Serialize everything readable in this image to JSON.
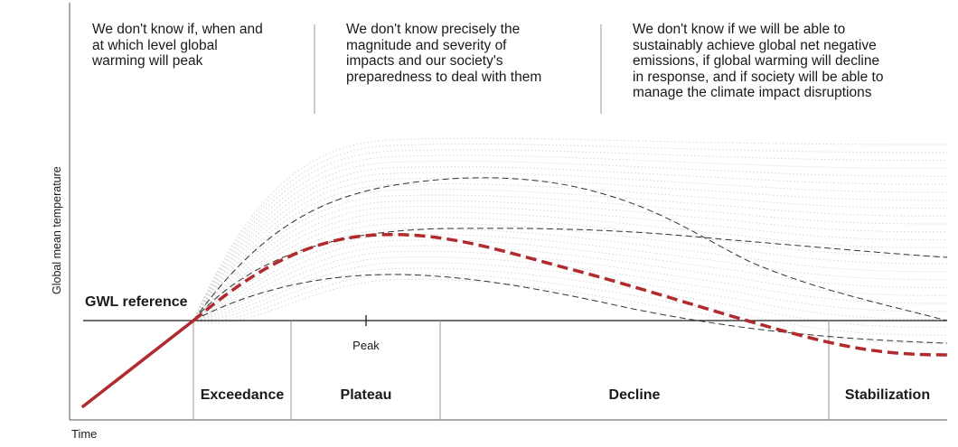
{
  "uncertainties": [
    "We don't know if, when and\nat which level global\nwarming will peak",
    "We don't know precisely the\nmagnitude and severity of\nimpacts and our society's\npreparedness to deal with them",
    "We don't know if we will be able to\nsustainably achieve global net negative\nemissions, if global warming will decline\nin response, and if society will be able to\nmanage the climate impact disruptions"
  ],
  "axes": {
    "y_label": "Global mean temperature",
    "x_label": "Time"
  },
  "reference": {
    "label": "GWL reference"
  },
  "peak_label": "Peak",
  "phases": [
    "Exceedance",
    "Plateau",
    "Decline",
    "Stabilization"
  ],
  "colors": {
    "main_pathway": "#b02a2e",
    "alt_pathways": "#333333",
    "spread": "#cccccc"
  }
}
